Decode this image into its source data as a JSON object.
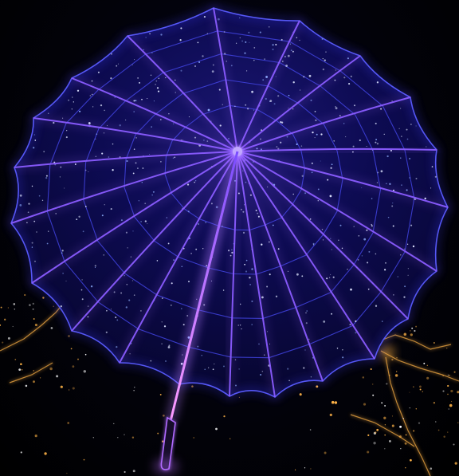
{
  "image": {
    "subject": "glowing-umbrella",
    "palette": {
      "background": "#000000",
      "canopy_fill": "#0b0a4a",
      "canopy_edge": "#3f3cff",
      "rib": "#6b3cff",
      "rib_glow": "#a56bff",
      "handle": "#b06bff",
      "city_lights": "#ffb347"
    }
  }
}
